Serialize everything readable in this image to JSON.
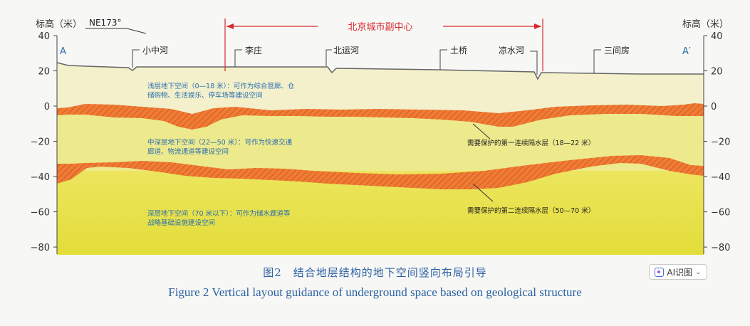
{
  "figure": {
    "axis_title_left": "标高（米）",
    "axis_title_right": "标高（米）",
    "y_ticks": [
      40,
      20,
      0,
      -20,
      -40,
      -60,
      -80
    ],
    "y_tick_labels": [
      "40",
      "20",
      "0",
      "−20",
      "−40",
      "−60",
      "−80"
    ],
    "y_range": [
      -84,
      40
    ],
    "direction": "NE173°",
    "end_left": "A",
    "end_right": "A′",
    "center_label": "北京城市副中心",
    "places": [
      "小中河",
      "李庄",
      "北运河",
      "土桥",
      "凉水河",
      "三间房"
    ],
    "zone_shallow_line1": "浅层地下空间（0—18 米）：可作为综合管廊、仓",
    "zone_shallow_line2": "储购物、生活娱乐、停车场等建设空间",
    "zone_mid_line1": "中深层地下空间（22—50 米）：可作为快速交通",
    "zone_mid_line2": "廊道、物流通道等建设空间",
    "zone_deep_line1": "深层地下空间（70 米以下）：可作为储水廊道等",
    "zone_deep_line2": "战略基础设施建设空间",
    "aquiclude_1": "需要保护的第一连续隔水层（18—22 米）",
    "aquiclude_2": "需要保护的第二连续隔水层（50—70 米）",
    "colors": {
      "shallow": "#f3f0c8",
      "mid": "#ece88c",
      "deep": "#e6e148",
      "layer": "#ec7b32",
      "label_blue": "#2a6fb0",
      "red": "#d8282e",
      "caption": "#2b62a3"
    }
  },
  "caption": {
    "chinese": "图2　结合地层结构的地下空间竖向布局引导",
    "english": "Figure 2    Vertical layout guidance of underground space based on geological structure"
  },
  "ai_button": {
    "label": "AI识图",
    "icon": "ai-recognize-icon",
    "chevron": "chevron-down-icon"
  }
}
